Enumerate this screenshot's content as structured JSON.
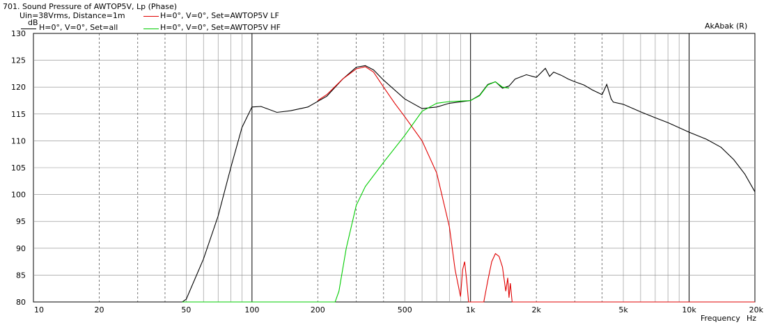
{
  "window_title": "701. Sound Pressure of AWTOP5V, Lp (Phase)",
  "legend": {
    "info": "Uin=38Vrms, Distance=1m",
    "items": [
      {
        "label": "H=0°, V=0°, Set=all",
        "color": "#000000"
      },
      {
        "label": "H=0°, V=0°, Set=AWTOP5V LF",
        "color": "#e00000"
      },
      {
        "label": "H=0°, V=0°, Set=AWTOP5V HF",
        "color": "#00cc00"
      }
    ]
  },
  "watermark": "AkAbak (R)",
  "chart_data": {
    "type": "line",
    "title": "Sound Pressure of AWTOP5V, Lp (Phase)",
    "xlabel": "Frequency",
    "xunit": "Hz",
    "ylabel": "dB",
    "xscale": "log",
    "xlim": [
      10,
      20000
    ],
    "ylim": [
      80,
      130
    ],
    "grid": true,
    "x_tick_labels": [
      "10",
      "20",
      "50",
      "100",
      "200",
      "500",
      "1k",
      "2k",
      "5k",
      "10k",
      "20k"
    ],
    "y_tick_labels": [
      "130",
      "125",
      "120",
      "115",
      "110",
      "105",
      "100",
      "95",
      "90",
      "85",
      "80"
    ],
    "series": [
      {
        "name": "H=0°, V=0°, Set=all",
        "color": "#000000",
        "x": [
          10,
          48,
          50,
          60,
          70,
          80,
          90,
          100,
          110,
          130,
          150,
          180,
          220,
          260,
          300,
          330,
          360,
          400,
          500,
          600,
          700,
          800,
          1000,
          1100,
          1200,
          1300,
          1400,
          1500,
          1600,
          1800,
          2000,
          2200,
          2300,
          2400,
          2600,
          2800,
          3000,
          3300,
          3600,
          4000,
          4200,
          4400,
          4500,
          5000,
          6000,
          7000,
          8000,
          10000,
          12000,
          14000,
          16000,
          18000,
          20000
        ],
        "y": [
          80,
          80,
          80.5,
          88,
          96,
          105,
          112.5,
          116.3,
          116.4,
          115.3,
          115.6,
          116.3,
          118.3,
          121.5,
          123.7,
          124.0,
          123.2,
          121.3,
          117.8,
          116.0,
          116.3,
          117.0,
          117.5,
          118.5,
          120.5,
          121.0,
          119.8,
          120.2,
          121.5,
          122.3,
          121.8,
          123.5,
          122.0,
          122.8,
          122.2,
          121.5,
          121.0,
          120.4,
          119.5,
          118.6,
          120.5,
          117.8,
          117.2,
          116.8,
          115.4,
          114.3,
          113.4,
          111.6,
          110.3,
          108.8,
          106.5,
          103.8,
          100.5
        ]
      },
      {
        "name": "H=0°, V=0°, Set=AWTOP5V LF",
        "color": "#e00000",
        "x": [
          200,
          220,
          260,
          300,
          330,
          360,
          400,
          450,
          500,
          600,
          700,
          800,
          850,
          900,
          920,
          940,
          960,
          980,
          1000,
          1050,
          1100,
          1150,
          1200,
          1250,
          1300,
          1350,
          1400,
          1450,
          1480,
          1500,
          1520,
          1550,
          1600,
          20000
        ],
        "y": [
          117.5,
          118.6,
          121.5,
          123.4,
          123.8,
          122.8,
          120.0,
          117.0,
          114.5,
          110.0,
          104.0,
          94.0,
          86.0,
          81.0,
          86.0,
          87.5,
          84.0,
          80.0,
          80.0,
          80.0,
          80.0,
          80.0,
          84.0,
          87.5,
          89.0,
          88.5,
          86.5,
          82.0,
          84.5,
          80.8,
          83.5,
          80.0,
          80.0,
          80.0
        ]
      },
      {
        "name": "H=0°, V=0°, Set=AWTOP5V HF",
        "color": "#00cc00",
        "x": [
          48,
          240,
          250,
          270,
          300,
          330,
          400,
          500,
          600,
          700,
          800,
          900,
          1000,
          1100,
          1200,
          1300,
          1400,
          1500
        ],
        "y": [
          80,
          80,
          82.0,
          90.0,
          98.0,
          101.5,
          106.0,
          111.0,
          115.5,
          117.0,
          117.3,
          117.4,
          117.5,
          118.4,
          120.4,
          121.0,
          120.0,
          119.8
        ]
      }
    ]
  }
}
